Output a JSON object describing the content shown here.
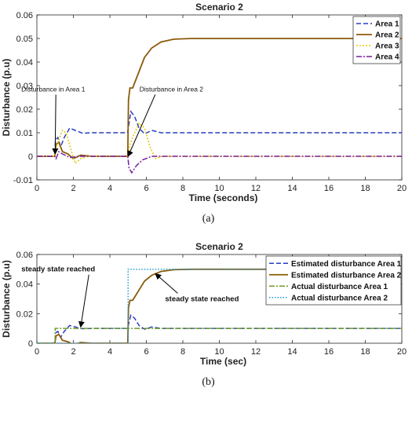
{
  "chart_data": [
    {
      "type": "line",
      "title": "Scenario 2",
      "xlabel": "Time (seconds)",
      "ylabel": "Disturbance (p.u)",
      "xlim": [
        0,
        20
      ],
      "ylim": [
        -0.01,
        0.06
      ],
      "xticks": [
        0,
        2,
        4,
        6,
        8,
        10,
        12,
        14,
        16,
        18,
        20
      ],
      "yticks": [
        -0.01,
        0,
        0.01,
        0.02,
        0.03,
        0.04,
        0.05,
        0.06
      ],
      "ytick_labels": [
        "-0.01",
        "0",
        "0.01",
        "0.02",
        "0.03",
        "0.04",
        "0.05",
        "0.06"
      ],
      "grid": false,
      "legend_position": "top-right",
      "caption": "(a)",
      "series": [
        {
          "name": "Area 1",
          "color": "#2b3fbf",
          "dash": "6,3",
          "points": [
            [
              0,
              0
            ],
            [
              0.98,
              0
            ],
            [
              1.02,
              0.007
            ],
            [
              1.15,
              0.008
            ],
            [
              1.3,
              0.004
            ],
            [
              1.5,
              0.008
            ],
            [
              1.8,
              0.012
            ],
            [
              2.1,
              0.011
            ],
            [
              2.5,
              0.0098
            ],
            [
              3,
              0.01
            ],
            [
              4.97,
              0.01
            ],
            [
              5.05,
              0.014
            ],
            [
              5.15,
              0.019
            ],
            [
              5.35,
              0.017
            ],
            [
              5.6,
              0.012
            ],
            [
              5.9,
              0.0095
            ],
            [
              6.3,
              0.011
            ],
            [
              6.8,
              0.01
            ],
            [
              20,
              0.01
            ]
          ]
        },
        {
          "name": "Area 2",
          "color": "#8b5a0b",
          "dash": "",
          "points": [
            [
              0,
              0
            ],
            [
              0.98,
              0
            ],
            [
              1.05,
              0.005
            ],
            [
              1.2,
              0.006
            ],
            [
              1.4,
              0.002
            ],
            [
              1.7,
              0.001
            ],
            [
              2.0,
              -0.001
            ],
            [
              2.4,
              0.0005
            ],
            [
              3,
              0
            ],
            [
              4.98,
              0
            ],
            [
              5.02,
              0.024
            ],
            [
              5.1,
              0.029
            ],
            [
              5.25,
              0.029
            ],
            [
              5.4,
              0.032
            ],
            [
              5.6,
              0.036
            ],
            [
              5.9,
              0.042
            ],
            [
              6.3,
              0.046
            ],
            [
              6.8,
              0.0485
            ],
            [
              7.5,
              0.0497
            ],
            [
              8.5,
              0.05
            ],
            [
              20,
              0.05
            ]
          ]
        },
        {
          "name": "Area 3",
          "color": "#e5c500",
          "dash": "2,2",
          "points": [
            [
              0,
              0
            ],
            [
              0.98,
              0
            ],
            [
              1.1,
              0.005
            ],
            [
              1.4,
              0.011
            ],
            [
              1.6,
              0.01
            ],
            [
              1.9,
              0.002
            ],
            [
              2.1,
              -0.003
            ],
            [
              2.4,
              -0.001
            ],
            [
              2.8,
              0
            ],
            [
              4.98,
              0
            ],
            [
              5.1,
              0.005
            ],
            [
              5.3,
              0.009
            ],
            [
              5.6,
              0.014
            ],
            [
              5.9,
              0.012
            ],
            [
              6.2,
              0.004
            ],
            [
              6.5,
              -0.001
            ],
            [
              6.9,
              0
            ],
            [
              20,
              0
            ]
          ]
        },
        {
          "name": "Area 4",
          "color": "#7a1f9a",
          "dash": "7,2,2,2",
          "points": [
            [
              0,
              0
            ],
            [
              0.98,
              0
            ],
            [
              1.05,
              -0.001
            ],
            [
              1.2,
              0.002
            ],
            [
              1.4,
              0.001
            ],
            [
              1.8,
              -0.0005
            ],
            [
              2.4,
              0
            ],
            [
              4.98,
              0
            ],
            [
              5.05,
              -0.005
            ],
            [
              5.2,
              -0.007
            ],
            [
              5.45,
              -0.004
            ],
            [
              5.8,
              -0.0015
            ],
            [
              6.3,
              0
            ],
            [
              20,
              0
            ]
          ]
        }
      ],
      "annotations": [
        {
          "text": "Disturbance in Area 1",
          "x": 1.9,
          "y": 0.0275,
          "point_x": 1.0,
          "point_y": 0.001
        },
        {
          "text": "Disturbance in Area 2",
          "x": 7.0,
          "y": 0.0275,
          "point_x": 5.0,
          "point_y": 0.0
        }
      ]
    },
    {
      "type": "line",
      "title": "Scenario 2",
      "xlabel": "Time (sec)",
      "ylabel": "Disturbance (p.u)",
      "xlim": [
        0,
        20
      ],
      "ylim": [
        0,
        0.06
      ],
      "xticks": [
        0,
        2,
        4,
        6,
        8,
        10,
        12,
        14,
        16,
        18,
        20
      ],
      "yticks": [
        0,
        0.02,
        0.04,
        0.06
      ],
      "ytick_labels": [
        "0",
        "0.02",
        "0.04",
        "0.06"
      ],
      "grid": false,
      "legend_position": "top-right",
      "caption": "(b)",
      "series": [
        {
          "name": "Estimated disturbance Area 1",
          "color": "#2b3fbf",
          "dash": "6,3",
          "points": [
            [
              0,
              0
            ],
            [
              0.98,
              0
            ],
            [
              1.02,
              0.007
            ],
            [
              1.15,
              0.008
            ],
            [
              1.3,
              0.004
            ],
            [
              1.5,
              0.008
            ],
            [
              1.8,
              0.012
            ],
            [
              2.1,
              0.011
            ],
            [
              2.5,
              0.0098
            ],
            [
              3,
              0.01
            ],
            [
              4.97,
              0.01
            ],
            [
              5.05,
              0.014
            ],
            [
              5.15,
              0.019
            ],
            [
              5.35,
              0.017
            ],
            [
              5.6,
              0.012
            ],
            [
              5.9,
              0.0095
            ],
            [
              6.3,
              0.011
            ],
            [
              6.8,
              0.01
            ],
            [
              20,
              0.01
            ]
          ]
        },
        {
          "name": "Estimated disturbance Area 2",
          "color": "#8b5a0b",
          "dash": "",
          "points": [
            [
              0,
              0
            ],
            [
              0.98,
              0
            ],
            [
              1.05,
              0.005
            ],
            [
              1.2,
              0.006
            ],
            [
              1.4,
              0.002
            ],
            [
              1.7,
              0.001
            ],
            [
              2.0,
              -0.001
            ],
            [
              2.4,
              0.0005
            ],
            [
              3,
              0
            ],
            [
              4.98,
              0
            ],
            [
              5.02,
              0.024
            ],
            [
              5.1,
              0.029
            ],
            [
              5.25,
              0.029
            ],
            [
              5.4,
              0.032
            ],
            [
              5.6,
              0.036
            ],
            [
              5.9,
              0.042
            ],
            [
              6.3,
              0.046
            ],
            [
              6.8,
              0.0485
            ],
            [
              7.5,
              0.0497
            ],
            [
              8.5,
              0.05
            ],
            [
              20,
              0.05
            ]
          ]
        },
        {
          "name": "Actual disturbance Area 1",
          "color": "#6e9a2a",
          "dash": "7,2,2,2",
          "points": [
            [
              0,
              0
            ],
            [
              1,
              0
            ],
            [
              1,
              0.01
            ],
            [
              20,
              0.01
            ]
          ]
        },
        {
          "name": "Actual disturbance Area 2",
          "color": "#1f9fd0",
          "dash": "1.5,2",
          "points": [
            [
              0,
              0
            ],
            [
              5,
              0
            ],
            [
              5,
              0.05
            ],
            [
              20,
              0.05
            ]
          ]
        }
      ],
      "annotations": [
        {
          "text": "steady state reached",
          "x": 1.3,
          "y": 0.0485,
          "point_x": 2.4,
          "point_y": 0.011
        },
        {
          "text": "steady state reached",
          "x": 7.2,
          "y": 0.0285,
          "point_x": 6.5,
          "point_y": 0.047
        }
      ]
    }
  ]
}
